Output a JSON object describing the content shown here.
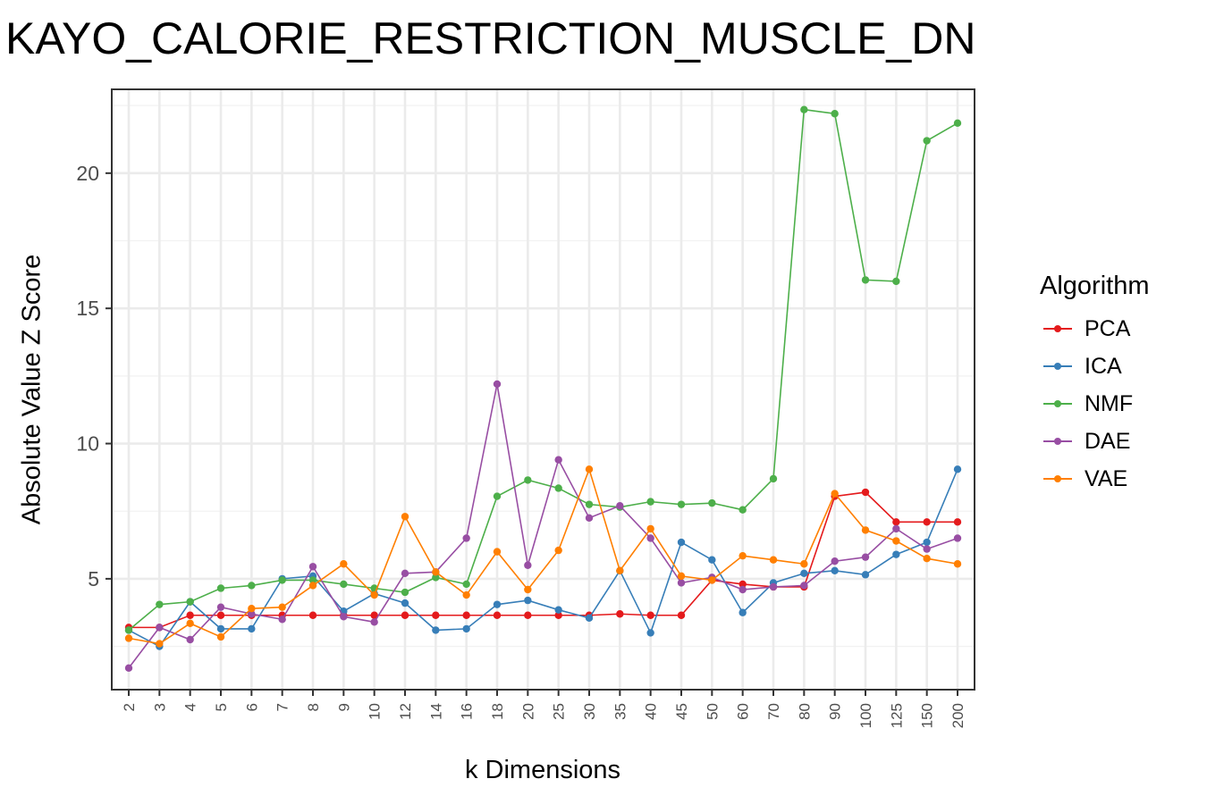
{
  "chart_data": {
    "type": "line",
    "title": "KAYO_CALORIE_RESTRICTION_MUSCLE_DN",
    "xlabel": "k Dimensions",
    "ylabel": "Absolute Value Z Score",
    "legend_title": "Algorithm",
    "legend_position": "right",
    "grid": true,
    "ylim": [
      0.9,
      23.1
    ],
    "yticks": [
      5,
      10,
      15,
      20
    ],
    "categories": [
      "2",
      "3",
      "4",
      "5",
      "6",
      "7",
      "8",
      "9",
      "10",
      "12",
      "14",
      "16",
      "18",
      "20",
      "25",
      "30",
      "35",
      "40",
      "45",
      "50",
      "60",
      "70",
      "80",
      "90",
      "100",
      "125",
      "150",
      "200"
    ],
    "series": [
      {
        "name": "PCA",
        "color": "#E41A1C",
        "values": [
          3.2,
          3.2,
          3.65,
          3.65,
          3.65,
          3.65,
          3.65,
          3.65,
          3.65,
          3.65,
          3.65,
          3.65,
          3.65,
          3.65,
          3.65,
          3.65,
          3.7,
          3.65,
          3.65,
          4.95,
          4.8,
          4.7,
          4.7,
          8.05,
          8.2,
          7.1,
          7.1,
          7.1
        ]
      },
      {
        "name": "ICA",
        "color": "#377EB8",
        "values": [
          3.1,
          2.5,
          4.15,
          3.15,
          3.15,
          5.0,
          5.1,
          3.8,
          4.45,
          4.1,
          3.1,
          3.15,
          4.05,
          4.2,
          3.85,
          3.55,
          5.3,
          3.0,
          6.35,
          5.7,
          3.75,
          4.85,
          5.2,
          5.3,
          5.15,
          5.9,
          6.35,
          9.05
        ]
      },
      {
        "name": "NMF",
        "color": "#4DAF4A",
        "values": [
          3.1,
          4.05,
          4.15,
          4.65,
          4.75,
          4.95,
          4.95,
          4.8,
          4.65,
          4.5,
          5.05,
          4.8,
          8.05,
          8.65,
          8.35,
          7.75,
          7.65,
          7.85,
          7.75,
          7.8,
          7.55,
          8.7,
          22.35,
          22.2,
          16.05,
          16.0,
          21.2,
          21.85
        ]
      },
      {
        "name": "DAE",
        "color": "#984EA3",
        "values": [
          1.7,
          3.2,
          2.75,
          3.95,
          3.7,
          3.5,
          5.45,
          3.6,
          3.4,
          5.2,
          5.25,
          6.5,
          12.2,
          5.5,
          9.4,
          7.25,
          7.7,
          6.5,
          4.85,
          5.05,
          4.6,
          4.7,
          4.75,
          5.65,
          5.8,
          6.85,
          6.1,
          6.5
        ]
      },
      {
        "name": "VAE",
        "color": "#FF7F00",
        "values": [
          2.8,
          2.6,
          3.35,
          2.85,
          3.9,
          3.95,
          4.75,
          5.55,
          4.4,
          7.3,
          5.25,
          4.4,
          6.0,
          4.6,
          6.05,
          9.05,
          5.3,
          6.85,
          5.1,
          4.95,
          5.85,
          5.7,
          5.55,
          8.15,
          6.8,
          6.4,
          5.75,
          5.55
        ]
      }
    ]
  }
}
